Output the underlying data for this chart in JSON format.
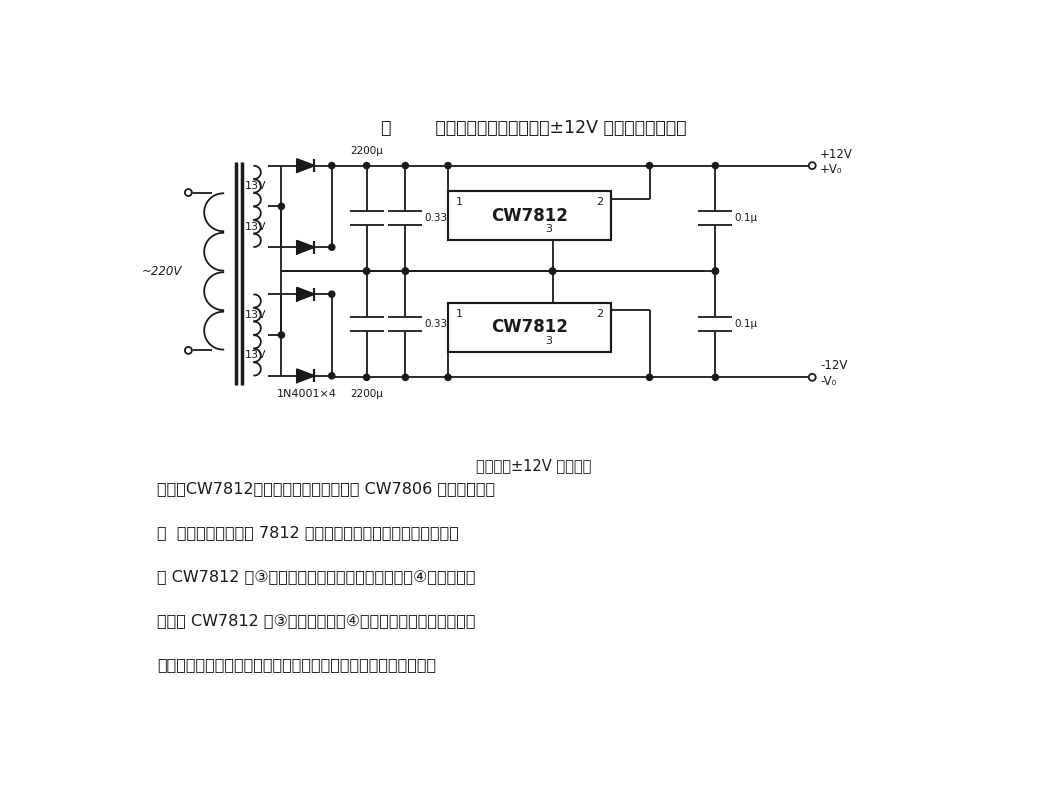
{
  "title_line": "图        所示的电路能够同时输出±12V 电压。电路的核心",
  "caption": "同时输出±12V 稳压电路",
  "body_lines": [
    "部件是CW7812，它的应用原理与上述的 CW7806 集成稳压器基",
    "本  样。本电路把两块 7812 集成稳压器巧妙地组合在一起，上边",
    "的 CW7812 是③脚输出端接本电路正输出，公共端④脚接地；下",
    "面一块 CW7812 的③脚接地，相反④脚接负输出端，组成负输出",
    "电源。上边的稳压器输出上浮于下面稳压器输出，如果把本电路负"
  ],
  "bg_color": "#ffffff",
  "line_color": "#1a1a1a",
  "text_color": "#1a1a1a",
  "lw": 1.3
}
